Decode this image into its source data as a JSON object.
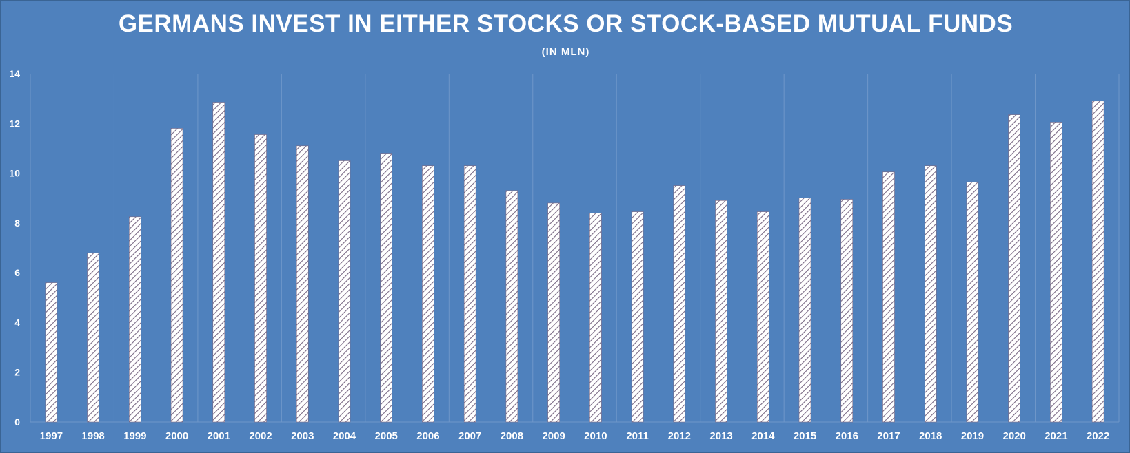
{
  "chart_data": {
    "type": "bar",
    "title": "GERMANS INVEST IN EITHER STOCKS OR STOCK-BASED MUTUAL FUNDS",
    "subtitle": "(IN MLN)",
    "xlabel": "",
    "ylabel": "",
    "ylim": [
      0,
      14
    ],
    "yticks": [
      0,
      2,
      4,
      6,
      8,
      10,
      12,
      14
    ],
    "grid": true,
    "categories": [
      "1997",
      "1998",
      "1999",
      "2000",
      "2001",
      "2002",
      "2003",
      "2004",
      "2005",
      "2006",
      "2007",
      "2008",
      "2009",
      "2010",
      "2011",
      "2012",
      "2013",
      "2014",
      "2015",
      "2016",
      "2017",
      "2018",
      "2019",
      "2020",
      "2021",
      "2022"
    ],
    "values": [
      5.6,
      6.8,
      8.25,
      11.8,
      12.85,
      11.55,
      11.1,
      10.5,
      10.8,
      10.3,
      10.3,
      9.3,
      8.8,
      8.4,
      8.45,
      9.5,
      8.9,
      8.45,
      9.0,
      8.95,
      10.05,
      10.3,
      9.65,
      12.35,
      12.05,
      12.9
    ],
    "colors": {
      "background": "#4f81bd",
      "bar_fill": "#ffffff",
      "bar_hatch": "#7b6b86",
      "grid": "#6f97c9",
      "text": "#ffffff"
    }
  }
}
